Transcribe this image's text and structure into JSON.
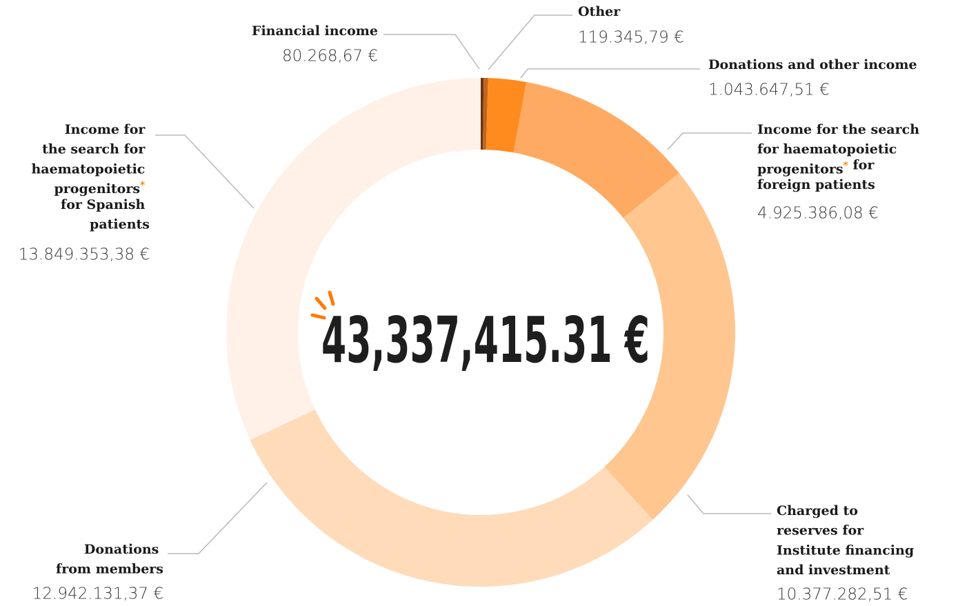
{
  "chart_data": {
    "type": "pie",
    "center_label": "43,337,415.31 €",
    "categories": [
      "Financial income",
      "Other",
      "Donations and other income",
      "Income for the search for haematopoietic progenitors* for foreign patients",
      "Charged to reserves for Institute financing and investment",
      "Donations from members",
      "Income for the search for haematopoietic progenitors* for Spanish patients"
    ],
    "values": [
      80268.67,
      119345.79,
      1043647.51,
      4925386.08,
      10377282.51,
      12942131.37,
      13849353.38
    ],
    "value_labels": [
      "80.268,67 €",
      "119.345,79 €",
      "1.043.647,51 €",
      "4.925.386,08 €",
      "10.377.282,51 €",
      "12.942.131,37 €",
      "13.849.353,38 €"
    ],
    "colors": [
      "#6b3512",
      "#c0651c",
      "#ff8a1e",
      "#ffaa62",
      "#ffc690",
      "#ffdbba",
      "#fff1e7"
    ]
  }
}
